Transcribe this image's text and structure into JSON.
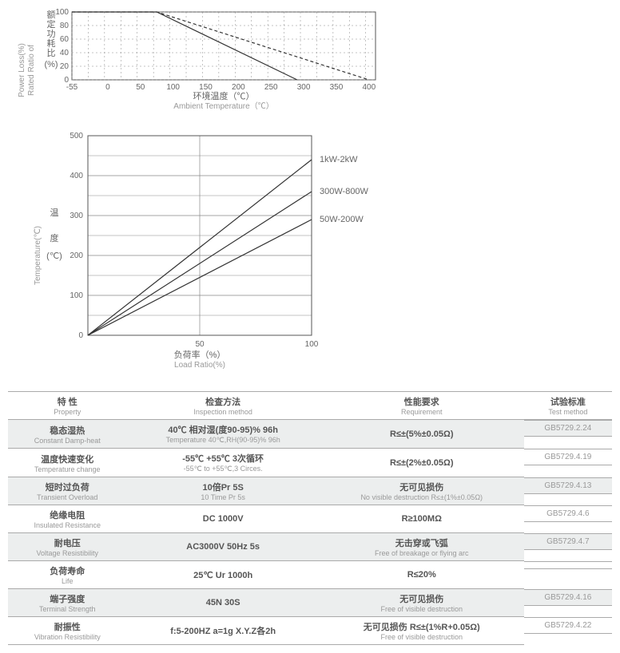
{
  "chart1": {
    "type": "line",
    "ylabel_cn": "额定功耗比",
    "ylabel_unit": "(%)",
    "ylabel_en1": "Rated Ratio of",
    "ylabel_en2": "Power Loss(%)",
    "xlabel_cn": "环境温度（℃）",
    "xlabel_en": "Ambient Temperature（℃）",
    "x_ticks": [
      -55,
      0,
      50,
      100,
      150,
      200,
      250,
      300,
      350,
      400
    ],
    "y_ticks": [
      0,
      20,
      40,
      60,
      80,
      100
    ],
    "xlim": [
      -55,
      410
    ],
    "ylim": [
      0,
      100
    ],
    "grid_color": "#888",
    "dash": "2,3",
    "series": [
      {
        "points": [
          [
            -55,
            100
          ],
          [
            75,
            100
          ],
          [
            290,
            0
          ]
        ],
        "style": "solid"
      },
      {
        "points": [
          [
            -55,
            100
          ],
          [
            75,
            100
          ],
          [
            400,
            0
          ]
        ],
        "style": "dash"
      }
    ]
  },
  "chart2": {
    "type": "line",
    "ylabel_cn": "温 度",
    "ylabel_en": "Temperature(℃)",
    "ylabel_unit": "(℃)",
    "xlabel_cn": "负荷率（%）",
    "xlabel_en": "Load Ratio(%)",
    "x_ticks": [
      50,
      100
    ],
    "y_ticks": [
      0,
      100,
      200,
      300,
      400,
      500
    ],
    "xlim": [
      0,
      100
    ],
    "ylim": [
      0,
      500
    ],
    "grid_color": "#888",
    "series": [
      {
        "label": "1kW-2kW",
        "points": [
          [
            0,
            0
          ],
          [
            100,
            440
          ]
        ]
      },
      {
        "label": "300W-800W",
        "points": [
          [
            0,
            0
          ],
          [
            100,
            360
          ]
        ]
      },
      {
        "label": "50W-200W",
        "points": [
          [
            0,
            0
          ],
          [
            100,
            290
          ]
        ]
      }
    ]
  },
  "table": {
    "headers": [
      {
        "cn": "特  性",
        "en": "Property"
      },
      {
        "cn": "检查方法",
        "en": "Inspection method"
      },
      {
        "cn": "性能要求",
        "en": "Requirement"
      },
      {
        "cn": "试验标准",
        "en": "Test method"
      }
    ],
    "rows": [
      {
        "alt": true,
        "prop": {
          "cn": "稳态湿热",
          "en": "Constant Damp-heat"
        },
        "insp": {
          "cn": "40℃ 相对湿(度90-95)% 96h",
          "en": "Temperature 40℃,RH(90-95)% 96h"
        },
        "req": {
          "cn": "R≤±(5%±0.05Ω)",
          "en": ""
        },
        "tm": "GB5729.2.24"
      },
      {
        "alt": false,
        "prop": {
          "cn": "温度快速变化",
          "en": "Temperature change"
        },
        "insp": {
          "cn": "-55℃  +55℃ 3次循环",
          "en": "-55℃ to +55℃,3 Circes."
        },
        "req": {
          "cn": "R≤±(2%±0.05Ω)",
          "en": ""
        },
        "tm": "GB5729.4.19"
      },
      {
        "alt": true,
        "prop": {
          "cn": "短时过负荷",
          "en": "Transient Overload"
        },
        "insp": {
          "cn": "10倍Pr 5S",
          "en": "10 Time Pr 5s"
        },
        "req": {
          "cn": "无可见损伤",
          "en": "No visible destruction R≤±(1%±0.05Ω)"
        },
        "tm": "GB5729.4.13"
      },
      {
        "alt": false,
        "prop": {
          "cn": "绝缘电阻",
          "en": "Insulated Resistance"
        },
        "insp": {
          "cn": "DC 1000V",
          "en": ""
        },
        "req": {
          "cn": "R≥100MΩ",
          "en": ""
        },
        "tm": "GB5729.4.6"
      },
      {
        "alt": true,
        "prop": {
          "cn": "耐电压",
          "en": "Voltage Resistibility"
        },
        "insp": {
          "cn": "AC3000V 50Hz 5s",
          "en": ""
        },
        "req": {
          "cn": "无击穿或飞弧",
          "en": "Free of breakage or flying arc"
        },
        "tm": "GB5729.4.7"
      },
      {
        "alt": false,
        "prop": {
          "cn": "负荷寿命",
          "en": "Life"
        },
        "insp": {
          "cn": "25℃ Ur  1000h",
          "en": ""
        },
        "req": {
          "cn": "R≤20%",
          "en": ""
        },
        "tm": ""
      },
      {
        "alt": true,
        "prop": {
          "cn": "端子强度",
          "en": "Terminal Strength"
        },
        "insp": {
          "cn": "45N 30S",
          "en": ""
        },
        "req": {
          "cn": "无可见损伤",
          "en": "Free of visible destruction"
        },
        "tm": "GB5729.4.16"
      },
      {
        "alt": false,
        "prop": {
          "cn": "耐振性",
          "en": "Vibration Resistibility"
        },
        "insp": {
          "cn": "f:5-200HZ a=1g X.Y.Z各2h",
          "en": ""
        },
        "req": {
          "cn": "无可见损伤 R≤±(1%R+0.05Ω)",
          "en": "Free of visible destruction"
        },
        "tm": "GB5729.4.22"
      }
    ]
  }
}
